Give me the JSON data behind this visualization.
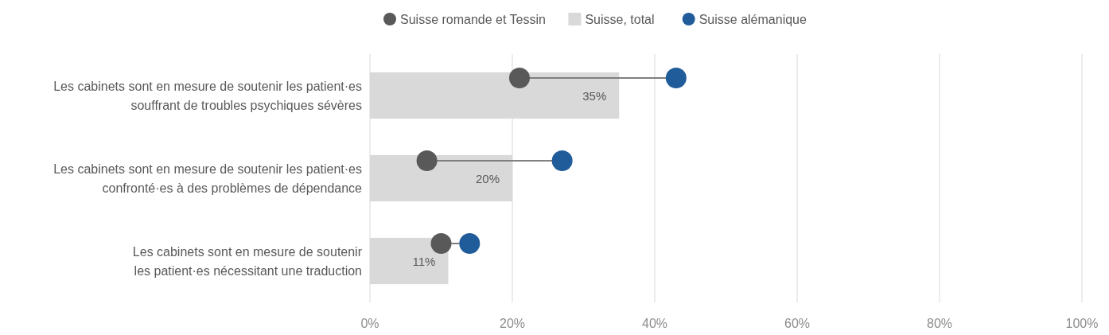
{
  "chart_data": {
    "type": "bar",
    "orientation": "horizontal",
    "categories": [
      "Les cabinets sont en mesure de soutenir les patient·es\nsouffrant de troubles psychiques sévères",
      "Les cabinets sont en mesure de soutenir les patient·es\nconfronté·es à des problèmes de dépendance",
      "Les cabinets sont en mesure de soutenir\nles patient·es nécessitant une traduction"
    ],
    "series": [
      {
        "name": "Suisse romande et Tessin",
        "type": "scatter",
        "color": "#595959",
        "values": [
          21,
          8,
          10
        ]
      },
      {
        "name": "Suisse, total",
        "color": "#d9d9d9",
        "values": [
          35,
          20,
          11
        ],
        "value_labels": [
          "35%",
          "20%",
          "11%"
        ]
      },
      {
        "name": "Suisse alémanique",
        "type": "scatter",
        "color": "#1f5c99",
        "values": [
          43,
          27,
          14
        ]
      }
    ],
    "xlim": [
      0,
      100
    ],
    "xticks": [
      {
        "value": 0,
        "label": "0%"
      },
      {
        "value": 20,
        "label": "20%"
      },
      {
        "value": 40,
        "label": "40%"
      },
      {
        "value": 60,
        "label": "60%"
      },
      {
        "value": 80,
        "label": "80%"
      },
      {
        "value": 100,
        "label": "100%"
      }
    ],
    "grid": "x",
    "legend": "top",
    "marker": "circle"
  }
}
